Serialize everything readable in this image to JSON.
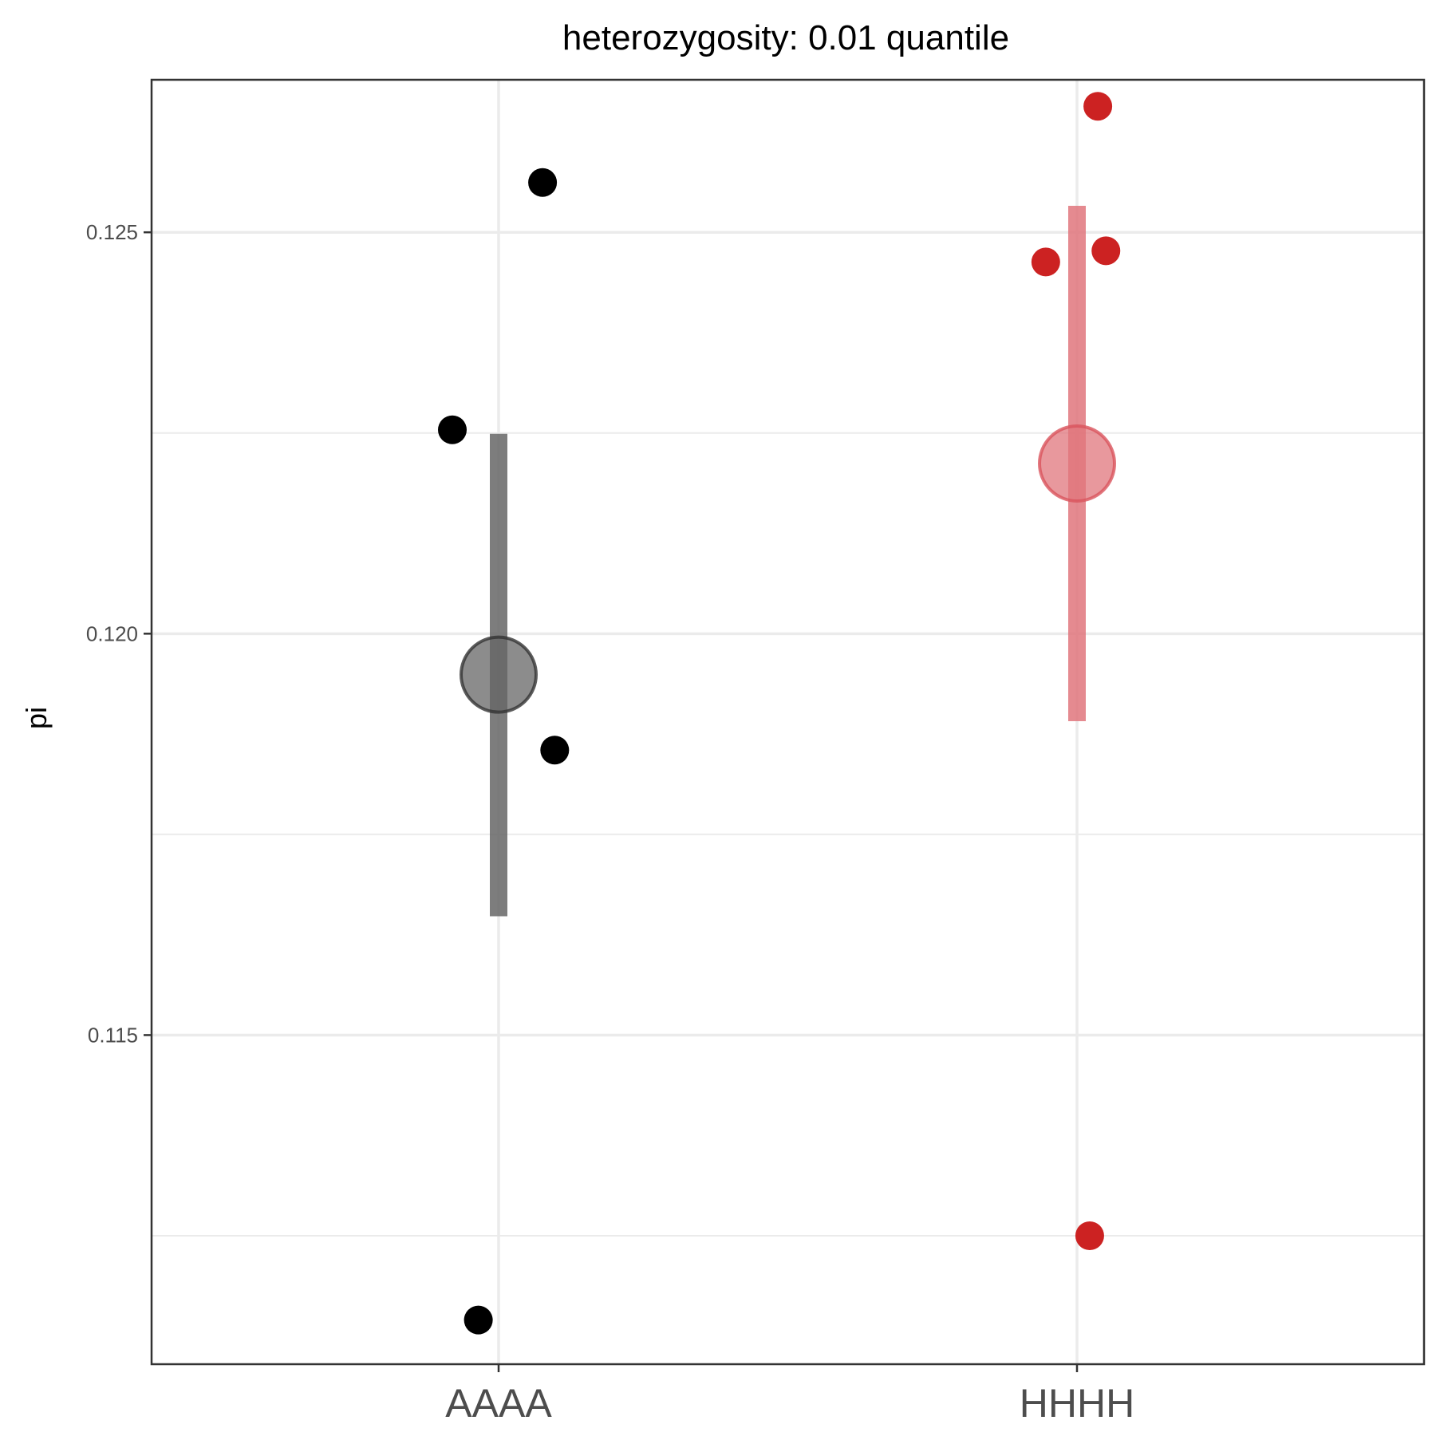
{
  "chart_data": {
    "type": "scatter",
    "title": "heterozygosity: 0.01 quantile",
    "xlabel": "",
    "ylabel": "pi",
    "categories": [
      "AAAA",
      "HHHH"
    ],
    "ylim": [
      0.1109,
      0.1269
    ],
    "yticks": [
      0.115,
      0.12,
      0.125
    ],
    "ytick_labels": [
      "0.115",
      "0.120",
      "0.125"
    ],
    "grid": true,
    "series": [
      {
        "category": "AAAA",
        "color": "#000000",
        "summary_color": "#666666",
        "points": [
          {
            "jitter": -0.08,
            "y": 0.12254
          },
          {
            "jitter": 0.076,
            "y": 0.12562
          },
          {
            "jitter": 0.097,
            "y": 0.11855
          },
          {
            "jitter": -0.035,
            "y": 0.11145
          }
        ],
        "mean": 0.11949,
        "error_low": 0.11648,
        "error_high": 0.12249
      },
      {
        "category": "HHHH",
        "color": "#cc2222",
        "summary_color": "#e0767c",
        "points": [
          {
            "jitter": 0.036,
            "y": 0.12657
          },
          {
            "jitter": -0.054,
            "y": 0.12463
          },
          {
            "jitter": 0.05,
            "y": 0.12477
          },
          {
            "jitter": 0.022,
            "y": 0.1125
          }
        ],
        "mean": 0.12212,
        "error_low": 0.11891,
        "error_high": 0.12533
      }
    ]
  }
}
